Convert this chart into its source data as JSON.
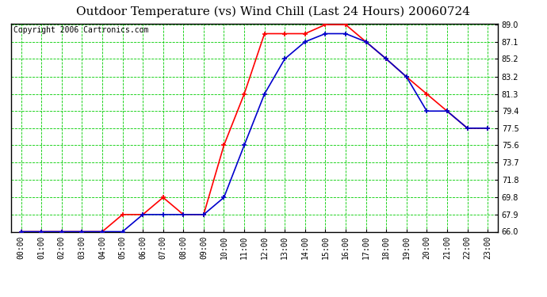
{
  "title": "Outdoor Temperature (vs) Wind Chill (Last 24 Hours) 20060724",
  "copyright": "Copyright 2006 Cartronics.com",
  "hours": [
    "00:00",
    "01:00",
    "02:00",
    "03:00",
    "04:00",
    "05:00",
    "06:00",
    "07:00",
    "08:00",
    "09:00",
    "10:00",
    "11:00",
    "12:00",
    "13:00",
    "14:00",
    "15:00",
    "16:00",
    "17:00",
    "18:00",
    "19:00",
    "20:00",
    "21:00",
    "22:00",
    "23:00"
  ],
  "temp": [
    66.0,
    66.0,
    66.0,
    66.0,
    66.0,
    67.9,
    67.9,
    69.8,
    67.9,
    67.9,
    75.6,
    81.3,
    88.0,
    88.0,
    88.0,
    89.0,
    89.0,
    87.1,
    85.2,
    83.2,
    81.3,
    79.4,
    77.5,
    77.5
  ],
  "windchill": [
    66.0,
    66.0,
    66.0,
    66.0,
    66.0,
    66.0,
    67.9,
    67.9,
    67.9,
    67.9,
    69.8,
    75.6,
    81.3,
    85.2,
    87.1,
    88.0,
    88.0,
    87.1,
    85.2,
    83.2,
    79.4,
    79.4,
    77.5,
    77.5
  ],
  "temp_color": "#ff0000",
  "windchill_color": "#0000cc",
  "grid_color": "#00cc00",
  "bg_color": "#ffffff",
  "plot_bg": "#ffffff",
  "ylim_min": 66.0,
  "ylim_max": 89.0,
  "yticks": [
    66.0,
    67.9,
    69.8,
    71.8,
    73.7,
    75.6,
    77.5,
    79.4,
    81.3,
    83.2,
    85.2,
    87.1,
    89.0
  ],
  "title_fontsize": 11,
  "copyright_fontsize": 7,
  "tick_fontsize": 7,
  "marker_size": 3,
  "line_width": 1.2
}
